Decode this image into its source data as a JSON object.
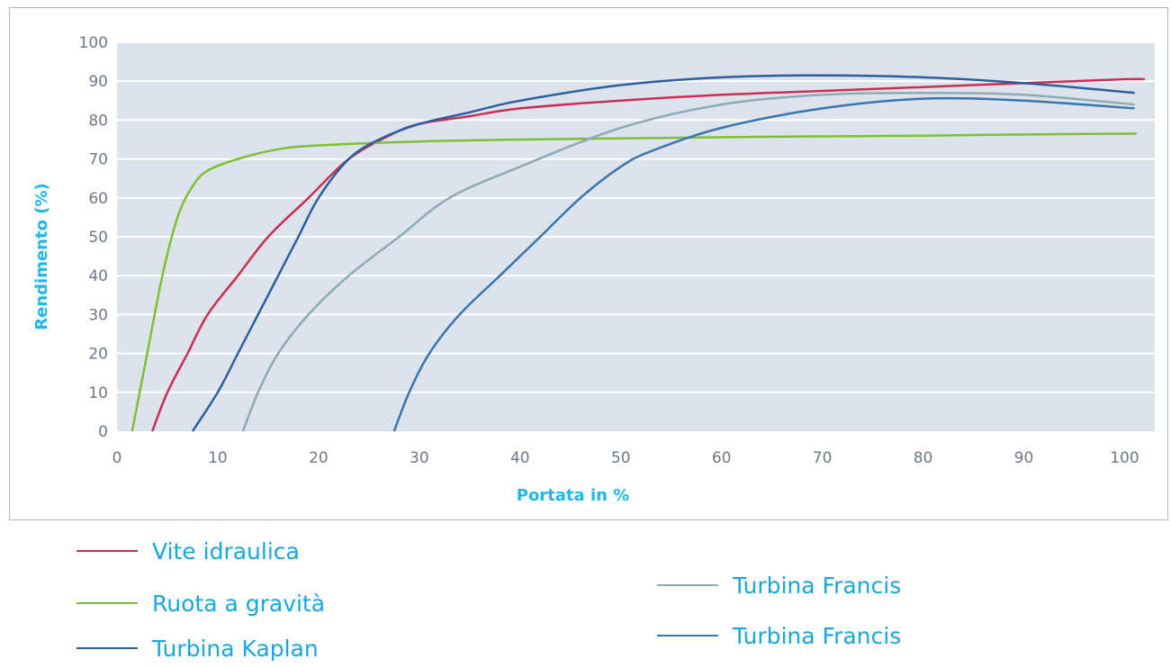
{
  "chart_data": {
    "type": "line",
    "title": "",
    "xlabel": "Portata in %",
    "ylabel": "Rendimento (%)",
    "xlim": [
      0,
      103
    ],
    "ylim": [
      0,
      100
    ],
    "xticks": [
      0,
      10,
      20,
      30,
      40,
      50,
      60,
      70,
      80,
      90,
      100
    ],
    "yticks": [
      0,
      10,
      20,
      30,
      40,
      50,
      60,
      70,
      80,
      90,
      100
    ],
    "grid": true,
    "legend_position": "bottom",
    "plot_background": "#dde3ec",
    "series": [
      {
        "name": "Vite idraulica",
        "color": "#cc2d52",
        "points": [
          [
            3.5,
            0
          ],
          [
            5,
            10
          ],
          [
            7,
            20
          ],
          [
            9,
            30
          ],
          [
            12,
            40
          ],
          [
            15,
            50
          ],
          [
            19,
            60
          ],
          [
            23,
            70
          ],
          [
            27,
            76
          ],
          [
            30,
            79
          ],
          [
            35,
            81
          ],
          [
            40,
            83
          ],
          [
            50,
            85
          ],
          [
            60,
            86.5
          ],
          [
            70,
            87.5
          ],
          [
            80,
            88.5
          ],
          [
            90,
            89.5
          ],
          [
            100,
            90.5
          ],
          [
            102,
            90.5
          ]
        ]
      },
      {
        "name": "Ruota a gravità",
        "color": "#7fbf32",
        "points": [
          [
            1.5,
            0
          ],
          [
            3,
            20
          ],
          [
            4.5,
            40
          ],
          [
            6,
            55
          ],
          [
            7.5,
            63
          ],
          [
            9,
            67
          ],
          [
            12,
            70
          ],
          [
            16,
            72.5
          ],
          [
            20,
            73.5
          ],
          [
            30,
            74.5
          ],
          [
            40,
            75
          ],
          [
            50,
            75.3
          ],
          [
            60,
            75.6
          ],
          [
            70,
            75.8
          ],
          [
            80,
            76
          ],
          [
            90,
            76.3
          ],
          [
            100,
            76.5
          ],
          [
            101,
            76.5
          ]
        ]
      },
      {
        "name": "Turbina Kaplan",
        "color": "#2d5f9e",
        "points": [
          [
            7.5,
            0
          ],
          [
            10,
            10
          ],
          [
            12,
            20
          ],
          [
            14,
            30
          ],
          [
            16,
            40
          ],
          [
            18,
            50
          ],
          [
            20,
            60
          ],
          [
            23,
            70
          ],
          [
            26,
            75
          ],
          [
            30,
            79
          ],
          [
            35,
            82
          ],
          [
            40,
            85
          ],
          [
            50,
            89
          ],
          [
            60,
            91
          ],
          [
            70,
            91.5
          ],
          [
            80,
            91
          ],
          [
            90,
            89.5
          ],
          [
            101,
            87
          ]
        ]
      },
      {
        "name": "Turbina Francis",
        "color": "#8eaab5",
        "points": [
          [
            12.5,
            0
          ],
          [
            14,
            10
          ],
          [
            16,
            20
          ],
          [
            19,
            30
          ],
          [
            23,
            40
          ],
          [
            28,
            50
          ],
          [
            33,
            60
          ],
          [
            40,
            68
          ],
          [
            50,
            78
          ],
          [
            60,
            84
          ],
          [
            70,
            86.5
          ],
          [
            80,
            87
          ],
          [
            90,
            86.5
          ],
          [
            101,
            84
          ]
        ]
      },
      {
        "name": "Turbina Francis",
        "color": "#3a75ad",
        "points": [
          [
            27.5,
            0
          ],
          [
            29,
            10
          ],
          [
            31,
            20
          ],
          [
            34,
            30
          ],
          [
            38,
            40
          ],
          [
            42,
            50
          ],
          [
            46,
            60
          ],
          [
            50,
            68
          ],
          [
            53,
            72
          ],
          [
            60,
            78
          ],
          [
            70,
            83
          ],
          [
            80,
            85.5
          ],
          [
            90,
            85
          ],
          [
            101,
            83
          ]
        ]
      }
    ]
  }
}
